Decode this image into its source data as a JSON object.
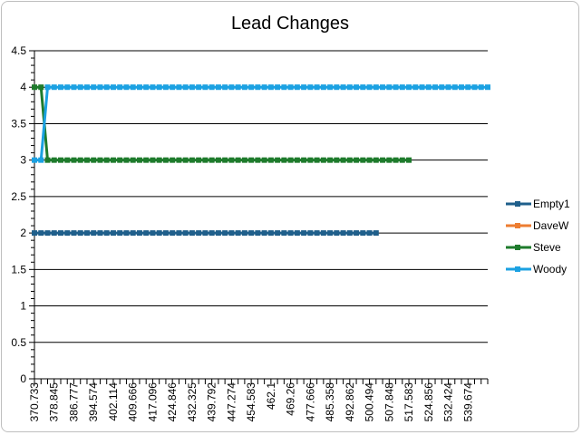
{
  "chart_data": {
    "type": "line",
    "title": "Lead Changes",
    "xlabel": "",
    "ylabel": "",
    "ylim": [
      0,
      4.5
    ],
    "y_ticks": [
      "0",
      "0.5",
      "1",
      "1.5",
      "2",
      "2.5",
      "3",
      "3.5",
      "4",
      "4.5"
    ],
    "x_count": 70,
    "x_labeled_ticks": [
      "370.733",
      "378.845",
      "386.777",
      "394.574",
      "402.114",
      "409.666",
      "417.096",
      "424.846",
      "432.325",
      "439.792",
      "447.274",
      "454.583",
      "462.1",
      "469.26",
      "477.666",
      "485.358",
      "492.862",
      "500.494",
      "507.848",
      "517.583",
      "524.856",
      "532.424",
      "539.674"
    ],
    "grid": true,
    "legend_position": "right",
    "series": [
      {
        "name": "Empty1",
        "color": "#1f5f8b",
        "segments": [
          {
            "start": 0,
            "end": 52,
            "value": 2
          }
        ]
      },
      {
        "name": "DaveW",
        "color": "#ed7d31",
        "segments": []
      },
      {
        "name": "Steve",
        "color": "#1e7b2c",
        "segments": [
          {
            "start": 0,
            "end": 1,
            "value": 4
          },
          {
            "start": 2,
            "end": 57,
            "value": 3
          }
        ]
      },
      {
        "name": "Woody",
        "color": "#1ba1e2",
        "segments": [
          {
            "start": 0,
            "end": 1,
            "value": 3
          },
          {
            "start": 2,
            "end": 69,
            "value": 4
          }
        ]
      }
    ]
  }
}
